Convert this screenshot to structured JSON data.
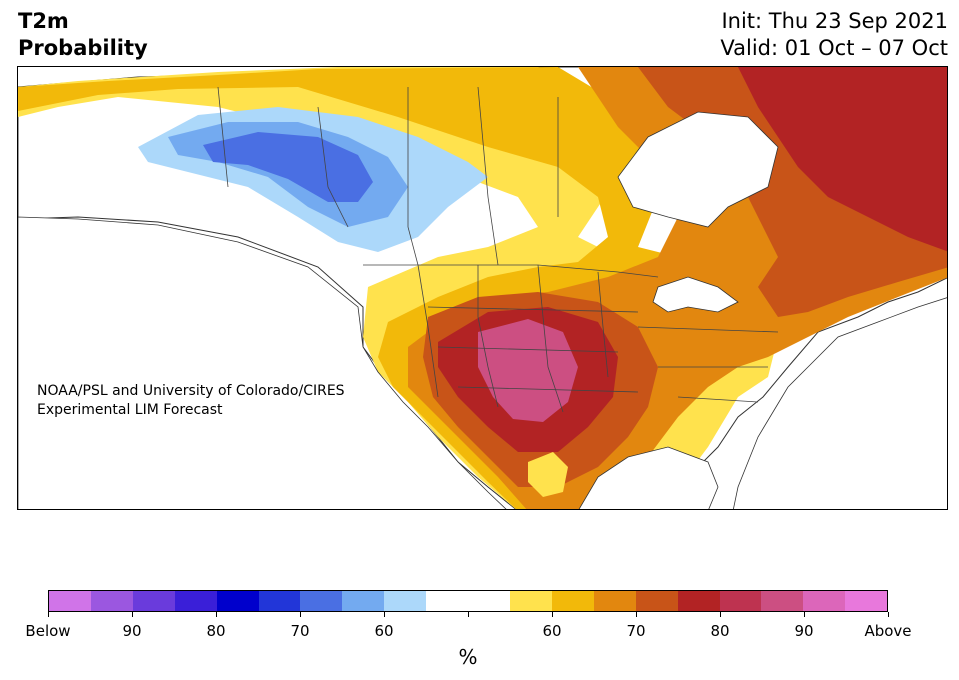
{
  "header": {
    "title_line1": "T2m",
    "title_line2": "Probability",
    "init": "Init: Thu 23 Sep 2021",
    "valid": "Valid: 01 Oct – 07 Oct"
  },
  "credit": {
    "line1": "NOAA/PSL and University of Colorado/CIRES",
    "line2": "Experimental LIM Forecast"
  },
  "colors": {
    "land_outline": "#333333",
    "water": "#ffffff"
  },
  "colorbar": {
    "unit": "%",
    "colors": [
      "#d074e8",
      "#9b57e0",
      "#6a3bdc",
      "#3a1fd8",
      "#0000cc",
      "#2236d8",
      "#4a6fe3",
      "#73aaf0",
      "#acd8fa",
      "#ffffff",
      "#ffffff",
      "#ffe24d",
      "#f2b90a",
      "#e2870f",
      "#c85418",
      "#b22324",
      "#be3350",
      "#cc4f82",
      "#dc66ba",
      "#e878dc"
    ],
    "ticks": [
      "Below",
      "90",
      "80",
      "70",
      "60",
      "",
      "60",
      "70",
      "80",
      "90",
      "Above"
    ]
  },
  "map": {
    "regions": [
      {
        "name": "west-cold-region",
        "category": "Below 60"
      },
      {
        "name": "west-cold-core",
        "category": "Below 70"
      },
      {
        "name": "east-canada-warm",
        "category": "Above 70-80"
      },
      {
        "name": "southwest-warm-core",
        "category": "Above 80-90"
      }
    ]
  }
}
